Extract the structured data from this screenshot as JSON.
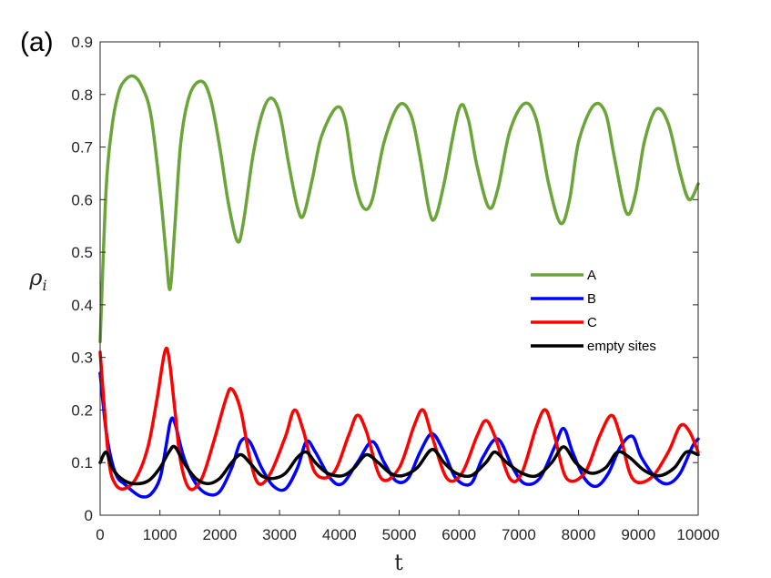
{
  "panel_label": "(a)",
  "chart_data": {
    "type": "line",
    "xlabel": "t",
    "ylabel": "ρ",
    "ylabel_sub": "i",
    "xlim": [
      0,
      10000
    ],
    "ylim": [
      0,
      0.9
    ],
    "xticks": [
      0,
      1000,
      2000,
      3000,
      4000,
      5000,
      6000,
      7000,
      8000,
      9000,
      10000
    ],
    "xtick_labels": [
      "0",
      "1000",
      "2000",
      "3000",
      "4000",
      "5000",
      "6000",
      "7000",
      "8000",
      "9000",
      "10000"
    ],
    "yticks": [
      0,
      0.1,
      0.2,
      0.3,
      0.4,
      0.5,
      0.6,
      0.7,
      0.8,
      0.9
    ],
    "ytick_labels": [
      "0",
      "0.1",
      "0.2",
      "0.3",
      "0.4",
      "0.5",
      "0.6",
      "0.7",
      "0.8",
      "0.9"
    ],
    "grid": false,
    "legend_position": "right",
    "series": [
      {
        "name": "A",
        "color": "#6ba53a",
        "x": [
          0,
          100,
          200,
          300,
          400,
          550,
          700,
          850,
          1000,
          1100,
          1170,
          1250,
          1350,
          1500,
          1700,
          1850,
          2000,
          2150,
          2300,
          2400,
          2550,
          2700,
          2850,
          3000,
          3150,
          3300,
          3400,
          3550,
          3700,
          3950,
          4100,
          4250,
          4400,
          4550,
          4750,
          5000,
          5200,
          5350,
          5500,
          5600,
          5750,
          6000,
          6150,
          6300,
          6500,
          6650,
          6850,
          7100,
          7300,
          7500,
          7700,
          7850,
          8000,
          8250,
          8450,
          8600,
          8800,
          8950,
          9100,
          9300,
          9500,
          9700,
          9850,
          10000
        ],
        "y": [
          0.33,
          0.62,
          0.74,
          0.8,
          0.825,
          0.835,
          0.815,
          0.76,
          0.62,
          0.5,
          0.43,
          0.55,
          0.71,
          0.8,
          0.825,
          0.79,
          0.7,
          0.59,
          0.52,
          0.56,
          0.68,
          0.76,
          0.793,
          0.765,
          0.67,
          0.585,
          0.57,
          0.64,
          0.72,
          0.775,
          0.75,
          0.64,
          0.585,
          0.6,
          0.71,
          0.78,
          0.76,
          0.68,
          0.58,
          0.565,
          0.63,
          0.772,
          0.755,
          0.665,
          0.585,
          0.62,
          0.73,
          0.783,
          0.75,
          0.63,
          0.555,
          0.6,
          0.71,
          0.779,
          0.765,
          0.68,
          0.575,
          0.61,
          0.71,
          0.772,
          0.745,
          0.65,
          0.6,
          0.63
        ]
      },
      {
        "name": "B",
        "color": "#0000ff",
        "x": [
          0,
          100,
          200,
          300,
          400,
          550,
          700,
          850,
          1000,
          1100,
          1180,
          1250,
          1400,
          1600,
          1800,
          2000,
          2200,
          2350,
          2500,
          2700,
          2900,
          3100,
          3300,
          3450,
          3600,
          3850,
          4050,
          4300,
          4550,
          4750,
          4950,
          5150,
          5350,
          5550,
          5750,
          5950,
          6200,
          6400,
          6650,
          6900,
          7100,
          7350,
          7600,
          7750,
          7900,
          8100,
          8300,
          8500,
          8700,
          8900,
          9050,
          9300,
          9500,
          9700,
          9900,
          10000
        ],
        "y": [
          0.27,
          0.16,
          0.1,
          0.07,
          0.06,
          0.045,
          0.035,
          0.04,
          0.07,
          0.13,
          0.18,
          0.175,
          0.11,
          0.06,
          0.04,
          0.045,
          0.09,
          0.14,
          0.14,
          0.09,
          0.055,
          0.05,
          0.09,
          0.14,
          0.12,
          0.07,
          0.06,
          0.1,
          0.14,
          0.1,
          0.065,
          0.07,
          0.12,
          0.155,
          0.12,
          0.07,
          0.06,
          0.11,
          0.145,
          0.09,
          0.06,
          0.07,
          0.13,
          0.165,
          0.12,
          0.07,
          0.055,
          0.08,
          0.13,
          0.15,
          0.11,
          0.07,
          0.06,
          0.08,
          0.13,
          0.145
        ]
      },
      {
        "name": "C",
        "color": "#ff0000",
        "x": [
          0,
          60,
          150,
          250,
          400,
          600,
          800,
          950,
          1080,
          1150,
          1250,
          1350,
          1500,
          1700,
          1900,
          2100,
          2200,
          2350,
          2500,
          2650,
          2850,
          3100,
          3250,
          3400,
          3600,
          3900,
          4150,
          4300,
          4450,
          4700,
          5000,
          5250,
          5400,
          5550,
          5800,
          6050,
          6300,
          6450,
          6600,
          6850,
          7050,
          7300,
          7450,
          7600,
          7800,
          8100,
          8350,
          8550,
          8700,
          8900,
          9200,
          9500,
          9700,
          9850,
          10000
        ],
        "y": [
          0.31,
          0.22,
          0.1,
          0.06,
          0.05,
          0.07,
          0.13,
          0.22,
          0.31,
          0.3,
          0.2,
          0.1,
          0.05,
          0.07,
          0.14,
          0.22,
          0.24,
          0.2,
          0.11,
          0.06,
          0.08,
          0.15,
          0.2,
          0.16,
          0.08,
          0.08,
          0.15,
          0.19,
          0.16,
          0.07,
          0.09,
          0.17,
          0.2,
          0.15,
          0.07,
          0.08,
          0.15,
          0.18,
          0.15,
          0.07,
          0.08,
          0.17,
          0.2,
          0.15,
          0.07,
          0.08,
          0.15,
          0.19,
          0.15,
          0.07,
          0.07,
          0.12,
          0.17,
          0.16,
          0.12
        ]
      },
      {
        "name": "empty sites",
        "color": "#000000",
        "x": [
          0,
          100,
          200,
          350,
          550,
          800,
          1000,
          1150,
          1250,
          1400,
          1600,
          1800,
          2000,
          2200,
          2350,
          2500,
          2700,
          2900,
          3100,
          3300,
          3450,
          3600,
          3800,
          4050,
          4250,
          4450,
          4650,
          4850,
          5050,
          5300,
          5550,
          5750,
          5950,
          6200,
          6450,
          6600,
          6800,
          7050,
          7300,
          7550,
          7750,
          7950,
          8200,
          8450,
          8650,
          8850,
          9100,
          9350,
          9600,
          9800,
          10000
        ],
        "y": [
          0.1,
          0.12,
          0.09,
          0.07,
          0.06,
          0.065,
          0.09,
          0.12,
          0.13,
          0.1,
          0.07,
          0.06,
          0.07,
          0.1,
          0.115,
          0.1,
          0.075,
          0.07,
          0.08,
          0.11,
          0.12,
          0.1,
          0.08,
          0.075,
          0.09,
          0.115,
          0.1,
          0.08,
          0.075,
          0.09,
          0.125,
          0.1,
          0.08,
          0.075,
          0.1,
          0.12,
          0.1,
          0.08,
          0.075,
          0.1,
          0.13,
          0.1,
          0.08,
          0.09,
          0.12,
          0.11,
          0.085,
          0.075,
          0.09,
          0.12,
          0.115
        ]
      }
    ]
  }
}
